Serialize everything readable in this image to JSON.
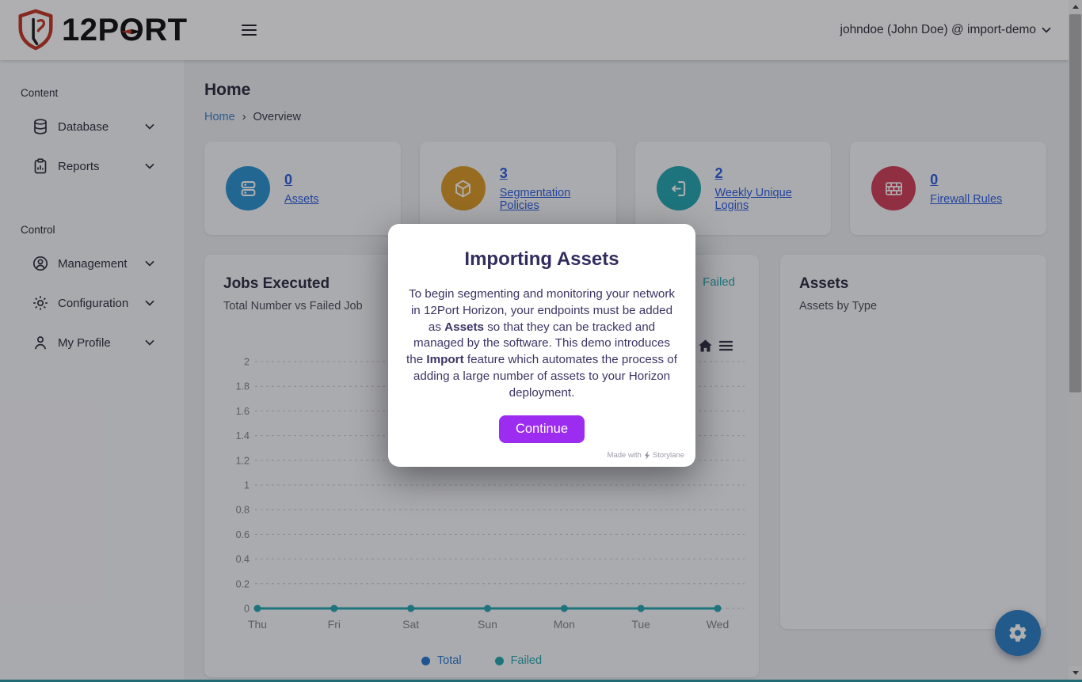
{
  "header": {
    "logo_text_left": "12P",
    "logo_text_o": "O",
    "logo_text_right": "RT",
    "user_menu_label": "johndoe (John Doe) @ import-demo"
  },
  "sidebar": {
    "sections": [
      {
        "label": "Content"
      },
      {
        "label": "Control"
      }
    ],
    "items": {
      "database": "Database",
      "reports": "Reports",
      "management": "Management",
      "configuration": "Configuration",
      "my_profile": "My Profile"
    }
  },
  "page": {
    "title": "Home",
    "breadcrumb_home": "Home",
    "breadcrumb_separator": "›",
    "breadcrumb_current": "Overview"
  },
  "stat_cards": [
    {
      "value": "0",
      "label": "Assets",
      "color": "#2d93d1",
      "icon": "server-icon"
    },
    {
      "value": "3",
      "label": "Segmentation Policies",
      "color": "#db9b28",
      "icon": "cube-icon"
    },
    {
      "value": "2",
      "label": "Weekly Unique Logins",
      "color": "#28a7b0",
      "icon": "login-icon"
    },
    {
      "value": "0",
      "label": "Firewall Rules",
      "color": "#d04059",
      "icon": "firewall-icon"
    }
  ],
  "jobs_card": {
    "title": "Jobs Executed",
    "subtitle": "Total Number vs Failed Job",
    "top_right_legend": "Failed"
  },
  "chart_data": {
    "type": "line",
    "title": "Jobs Executed",
    "categories": [
      "Thu",
      "Fri",
      "Sat",
      "Sun",
      "Mon",
      "Tue",
      "Wed"
    ],
    "yticks": [
      "0",
      "0.2",
      "0.4",
      "0.6",
      "0.8",
      "1",
      "1.2",
      "1.4",
      "1.6",
      "1.8",
      "2"
    ],
    "ylim": [
      0,
      2
    ],
    "grid": "dashed-horizontal",
    "legend_position": "bottom",
    "series": [
      {
        "name": "Total",
        "color": "#2879cf",
        "values": [
          0,
          0,
          0,
          0,
          0,
          0,
          0
        ]
      },
      {
        "name": "Failed",
        "color": "#28a7b0",
        "values": [
          0,
          0,
          0,
          0,
          0,
          0,
          0
        ]
      }
    ]
  },
  "assets_card": {
    "title": "Assets",
    "subtitle": "Assets by Type"
  },
  "modal": {
    "title": "Importing Assets",
    "body_segments": [
      {
        "t": "To begin segmenting and monitoring your network in 12Port Horizon, your endpoints must be added as ",
        "b": 0
      },
      {
        "t": "Assets",
        "b": 1
      },
      {
        "t": " so that they can be tracked and managed by the software. This demo introduces the ",
        "b": 0
      },
      {
        "t": "Import",
        "b": 1
      },
      {
        "t": " feature which automates the process of adding a large number of assets to your Horizon deployment.",
        "b": 0
      }
    ],
    "button_label": "Continue",
    "watermark_prefix": "Made with",
    "watermark_brand": "Storylane"
  },
  "colors": {
    "link_blue": "#2e5fe0",
    "breadcrumb_blue": "#3f7fca",
    "button_purple": "#9b2cf0",
    "fab_blue": "#2d82c6",
    "bottom_strip_teal": "#2e99a4"
  }
}
